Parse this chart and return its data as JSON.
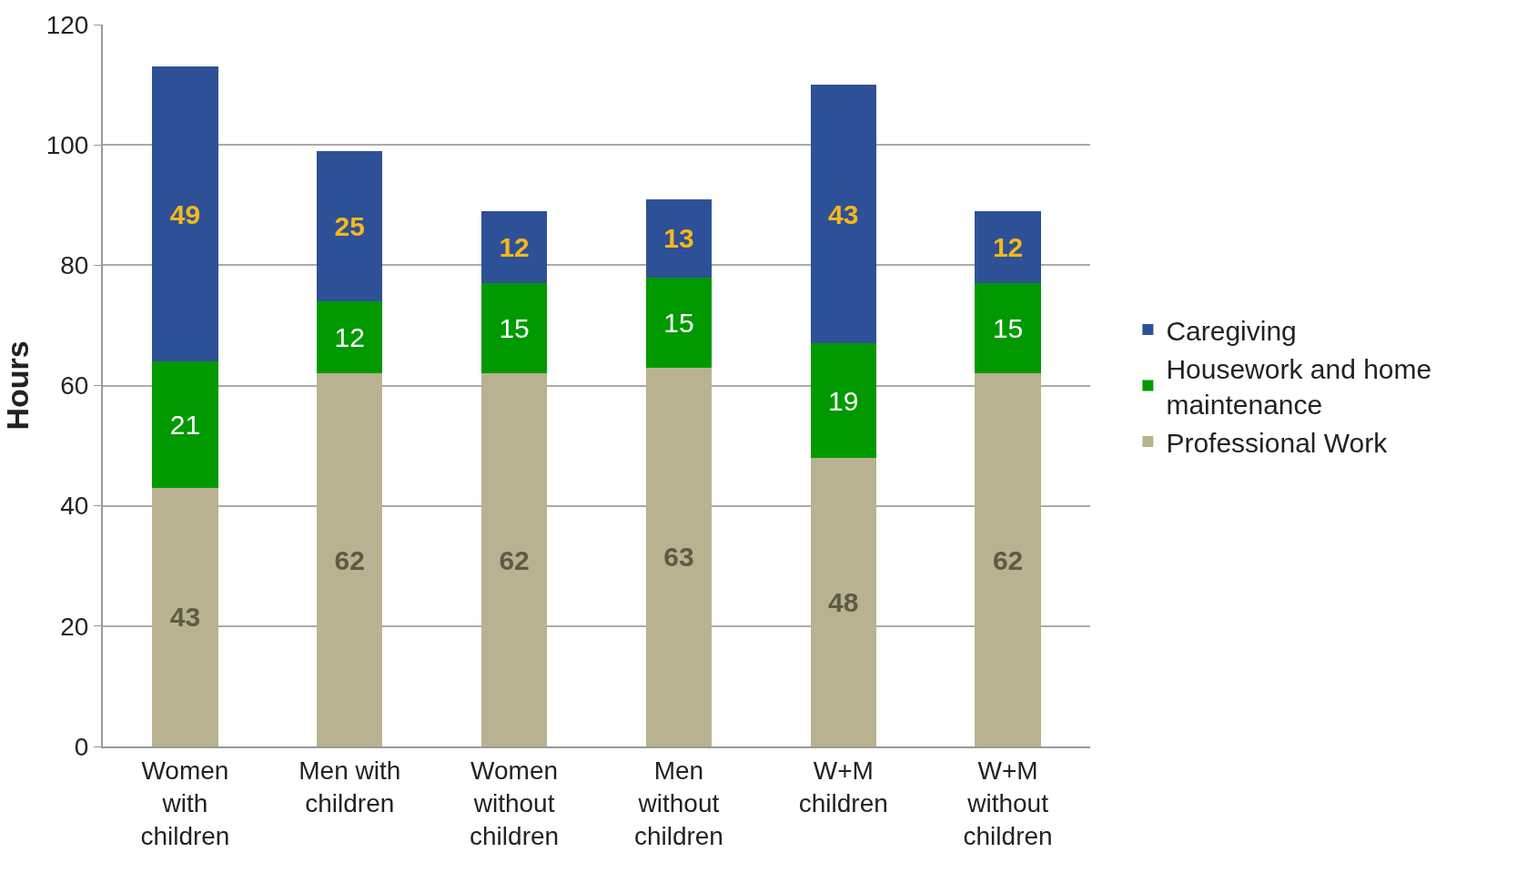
{
  "chart_data": {
    "type": "bar",
    "stacked": true,
    "ylabel": "Hours",
    "categories": [
      "Women with children",
      "Men with children",
      "Women without children",
      "Men without children",
      "W+M children",
      "W+M without children"
    ],
    "series": [
      {
        "name": "Professional Work",
        "color": "#b8b290",
        "values": [
          43,
          62,
          62,
          63,
          48,
          62
        ]
      },
      {
        "name": "Housework and home maintenance",
        "color": "#009900",
        "values": [
          21,
          12,
          15,
          15,
          19,
          15
        ]
      },
      {
        "name": "Caregiving",
        "color": "#2e5097",
        "values": [
          49,
          25,
          12,
          13,
          43,
          12
        ]
      }
    ],
    "ylim": [
      0,
      120
    ],
    "yticks": [
      0,
      20,
      40,
      60,
      80,
      100,
      120
    ],
    "grid": "y",
    "legend": "right",
    "data_labels": true
  }
}
